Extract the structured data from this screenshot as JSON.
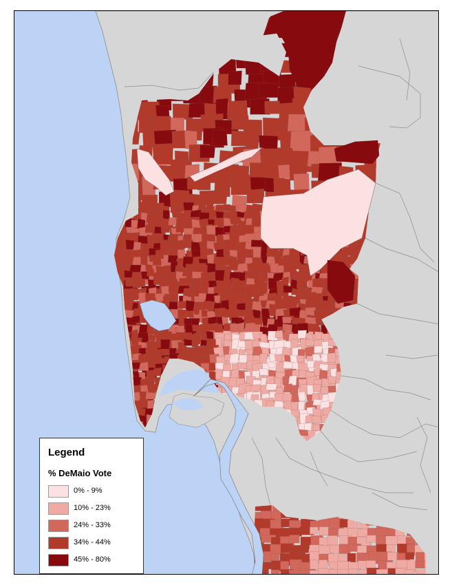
{
  "legend": {
    "title": "Legend",
    "subtitle": "% DeMaio Vote",
    "classes": [
      {
        "label": "0% - 9%",
        "color": "#fbe1e1"
      },
      {
        "label": "10% - 23%",
        "color": "#efaaa3"
      },
      {
        "label": "24% - 33%",
        "color": "#d2685c"
      },
      {
        "label": "34% - 44%",
        "color": "#b23a2b"
      },
      {
        "label": "45% - 80%",
        "color": "#870a0e"
      }
    ]
  },
  "colors": {
    "ocean": "#bcd3f5",
    "land_outside": "#d6d6d6",
    "outside_border": "#8d8d8d",
    "frame": "#000000"
  }
}
